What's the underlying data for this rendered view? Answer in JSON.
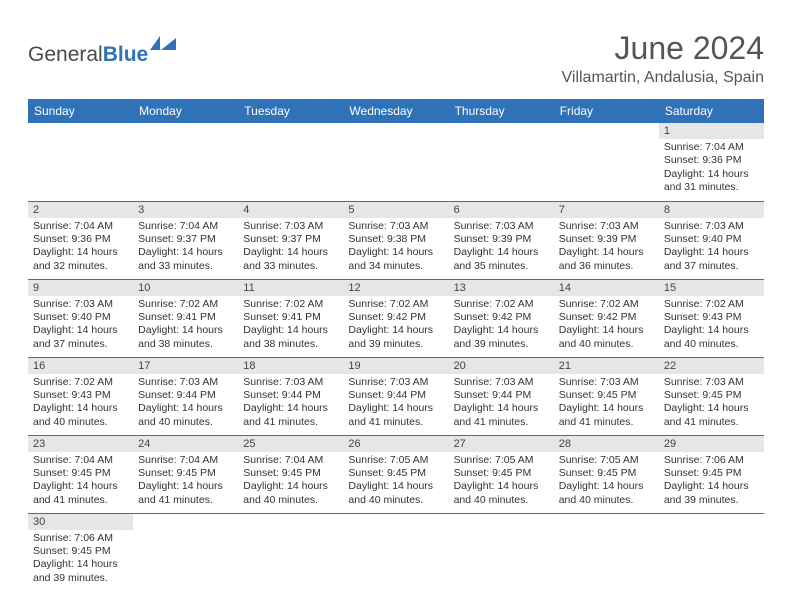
{
  "logo": {
    "word1": "General",
    "word2": "Blue"
  },
  "title": "June 2024",
  "location": "Villamartin, Andalusia, Spain",
  "colors": {
    "header_bg": "#2f72b8",
    "header_text": "#ffffff",
    "daynum_bg": "#e6e6e6",
    "border": "#2f72b8",
    "title_color": "#555555",
    "body_text": "#333333"
  },
  "dayHeaders": [
    "Sunday",
    "Monday",
    "Tuesday",
    "Wednesday",
    "Thursday",
    "Friday",
    "Saturday"
  ],
  "weeks": [
    [
      null,
      null,
      null,
      null,
      null,
      null,
      {
        "n": "1",
        "sr": "7:04 AM",
        "ss": "9:36 PM",
        "dl": "14 hours and 31 minutes."
      }
    ],
    [
      {
        "n": "2",
        "sr": "7:04 AM",
        "ss": "9:36 PM",
        "dl": "14 hours and 32 minutes."
      },
      {
        "n": "3",
        "sr": "7:04 AM",
        "ss": "9:37 PM",
        "dl": "14 hours and 33 minutes."
      },
      {
        "n": "4",
        "sr": "7:03 AM",
        "ss": "9:37 PM",
        "dl": "14 hours and 33 minutes."
      },
      {
        "n": "5",
        "sr": "7:03 AM",
        "ss": "9:38 PM",
        "dl": "14 hours and 34 minutes."
      },
      {
        "n": "6",
        "sr": "7:03 AM",
        "ss": "9:39 PM",
        "dl": "14 hours and 35 minutes."
      },
      {
        "n": "7",
        "sr": "7:03 AM",
        "ss": "9:39 PM",
        "dl": "14 hours and 36 minutes."
      },
      {
        "n": "8",
        "sr": "7:03 AM",
        "ss": "9:40 PM",
        "dl": "14 hours and 37 minutes."
      }
    ],
    [
      {
        "n": "9",
        "sr": "7:03 AM",
        "ss": "9:40 PM",
        "dl": "14 hours and 37 minutes."
      },
      {
        "n": "10",
        "sr": "7:02 AM",
        "ss": "9:41 PM",
        "dl": "14 hours and 38 minutes."
      },
      {
        "n": "11",
        "sr": "7:02 AM",
        "ss": "9:41 PM",
        "dl": "14 hours and 38 minutes."
      },
      {
        "n": "12",
        "sr": "7:02 AM",
        "ss": "9:42 PM",
        "dl": "14 hours and 39 minutes."
      },
      {
        "n": "13",
        "sr": "7:02 AM",
        "ss": "9:42 PM",
        "dl": "14 hours and 39 minutes."
      },
      {
        "n": "14",
        "sr": "7:02 AM",
        "ss": "9:42 PM",
        "dl": "14 hours and 40 minutes."
      },
      {
        "n": "15",
        "sr": "7:02 AM",
        "ss": "9:43 PM",
        "dl": "14 hours and 40 minutes."
      }
    ],
    [
      {
        "n": "16",
        "sr": "7:02 AM",
        "ss": "9:43 PM",
        "dl": "14 hours and 40 minutes."
      },
      {
        "n": "17",
        "sr": "7:03 AM",
        "ss": "9:44 PM",
        "dl": "14 hours and 40 minutes."
      },
      {
        "n": "18",
        "sr": "7:03 AM",
        "ss": "9:44 PM",
        "dl": "14 hours and 41 minutes."
      },
      {
        "n": "19",
        "sr": "7:03 AM",
        "ss": "9:44 PM",
        "dl": "14 hours and 41 minutes."
      },
      {
        "n": "20",
        "sr": "7:03 AM",
        "ss": "9:44 PM",
        "dl": "14 hours and 41 minutes."
      },
      {
        "n": "21",
        "sr": "7:03 AM",
        "ss": "9:45 PM",
        "dl": "14 hours and 41 minutes."
      },
      {
        "n": "22",
        "sr": "7:03 AM",
        "ss": "9:45 PM",
        "dl": "14 hours and 41 minutes."
      }
    ],
    [
      {
        "n": "23",
        "sr": "7:04 AM",
        "ss": "9:45 PM",
        "dl": "14 hours and 41 minutes."
      },
      {
        "n": "24",
        "sr": "7:04 AM",
        "ss": "9:45 PM",
        "dl": "14 hours and 41 minutes."
      },
      {
        "n": "25",
        "sr": "7:04 AM",
        "ss": "9:45 PM",
        "dl": "14 hours and 40 minutes."
      },
      {
        "n": "26",
        "sr": "7:05 AM",
        "ss": "9:45 PM",
        "dl": "14 hours and 40 minutes."
      },
      {
        "n": "27",
        "sr": "7:05 AM",
        "ss": "9:45 PM",
        "dl": "14 hours and 40 minutes."
      },
      {
        "n": "28",
        "sr": "7:05 AM",
        "ss": "9:45 PM",
        "dl": "14 hours and 40 minutes."
      },
      {
        "n": "29",
        "sr": "7:06 AM",
        "ss": "9:45 PM",
        "dl": "14 hours and 39 minutes."
      }
    ],
    [
      {
        "n": "30",
        "sr": "7:06 AM",
        "ss": "9:45 PM",
        "dl": "14 hours and 39 minutes."
      },
      null,
      null,
      null,
      null,
      null,
      null
    ]
  ],
  "labels": {
    "sunrise": "Sunrise:",
    "sunset": "Sunset:",
    "daylight": "Daylight:"
  }
}
